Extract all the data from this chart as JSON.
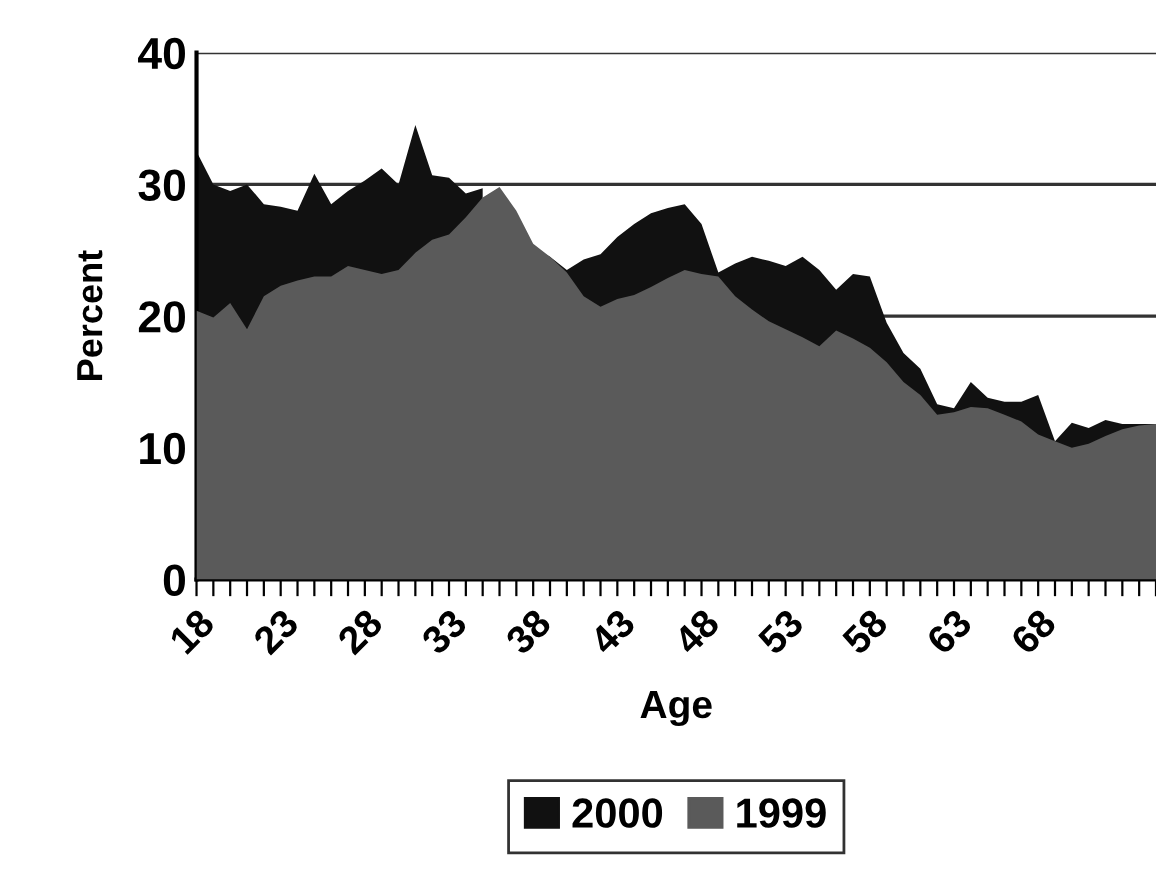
{
  "chart_data": {
    "type": "area",
    "xlabel": "Age",
    "ylabel": "Percent",
    "categories": [
      "18",
      null,
      null,
      null,
      null,
      "23",
      null,
      null,
      null,
      null,
      "28",
      null,
      null,
      null,
      null,
      "33",
      null,
      null,
      null,
      null,
      "38",
      null,
      null,
      null,
      null,
      "43",
      null,
      null,
      null,
      null,
      "48",
      null,
      null,
      null,
      null,
      "53",
      null,
      null,
      null,
      null,
      "58",
      null,
      null,
      null,
      null,
      "63",
      null,
      null,
      null,
      null,
      "68",
      null,
      null,
      null,
      null,
      null,
      null,
      null
    ],
    "series": [
      {
        "name": "2000",
        "color": "#111111",
        "values": [
          32.5,
          30,
          29.5,
          30,
          28.5,
          28.3,
          28,
          30.8,
          28.5,
          29.5,
          30.3,
          31.2,
          30,
          34.5,
          30.7,
          30.5,
          29.3,
          29.7,
          null,
          null,
          25.2,
          24.5,
          23.5,
          24.3,
          24.7,
          26,
          27,
          27.8,
          28.2,
          28.5,
          27,
          23.3,
          24,
          24.5,
          24.2,
          23.8,
          24.5,
          23.5,
          22,
          23.2,
          23,
          19.5,
          17.2,
          16,
          13.3,
          13,
          15,
          13.8,
          13.5,
          13.5,
          14,
          10.5,
          11.9,
          11.5,
          12.1,
          11.8,
          11.8,
          11.8
        ]
      },
      {
        "name": "1999",
        "color": "#5a5a5a",
        "values": [
          20.4,
          19.9,
          21,
          19,
          21.5,
          22.3,
          22.7,
          23,
          23,
          23.8,
          23.5,
          23.2,
          23.5,
          24.8,
          25.8,
          26.2,
          27.5,
          29,
          29.8,
          28,
          25.5,
          24.5,
          23.3,
          21.5,
          20.7,
          21.3,
          21.6,
          22.2,
          22.9,
          23.5,
          23.2,
          23,
          21.5,
          20.5,
          19.6,
          19,
          18.4,
          17.7,
          18.9,
          18.3,
          17.6,
          16.5,
          15,
          14,
          12.5,
          12.7,
          13.1,
          13,
          12.5,
          12,
          11,
          10.5,
          10,
          10.3,
          10.9,
          11.4,
          11.7,
          11.8
        ]
      }
    ],
    "ylim": [
      0,
      40
    ],
    "yticks": [
      0,
      10,
      20,
      30,
      40
    ],
    "grid": "y",
    "legend": "bottom"
  }
}
